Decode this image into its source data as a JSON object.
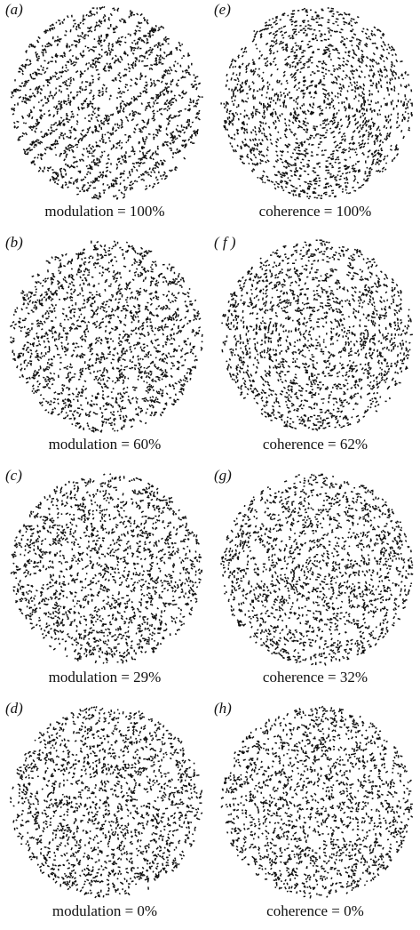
{
  "figure": {
    "panels": [
      {
        "id": "a",
        "letter": "(a)",
        "caption": "modulation = 100%",
        "kind": "modulation",
        "percent": 100
      },
      {
        "id": "e",
        "letter": "(e)",
        "caption": "coherence = 100%",
        "kind": "coherence",
        "percent": 100
      },
      {
        "id": "b",
        "letter": "(b)",
        "caption": "modulation = 60%",
        "kind": "modulation",
        "percent": 60
      },
      {
        "id": "f",
        "letter": "( f )",
        "caption": "coherence = 62%",
        "kind": "coherence",
        "percent": 62
      },
      {
        "id": "c",
        "letter": "(c)",
        "caption": "modulation = 29%",
        "kind": "modulation",
        "percent": 29
      },
      {
        "id": "g",
        "letter": "(g)",
        "caption": "coherence = 32%",
        "kind": "coherence",
        "percent": 32
      },
      {
        "id": "d",
        "letter": "(d)",
        "caption": "modulation = 0%",
        "kind": "modulation",
        "percent": 0
      },
      {
        "id": "h",
        "letter": "(h)",
        "caption": "coherence = 0%",
        "kind": "coherence",
        "percent": 0
      }
    ],
    "dot_color": "#111111",
    "background_color": "#ffffff"
  }
}
